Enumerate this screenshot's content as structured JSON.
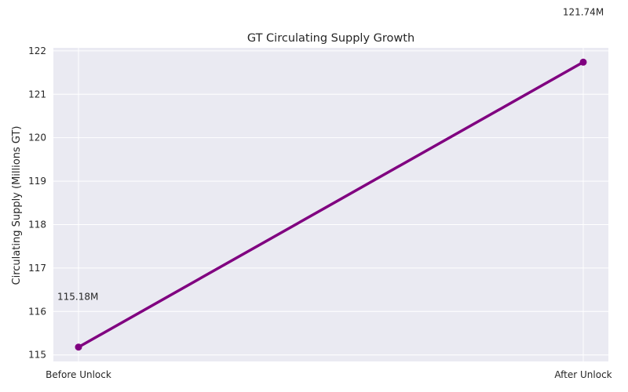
{
  "chart_data": {
    "type": "line",
    "title": "GT Circulating Supply Growth",
    "xlabel": "",
    "ylabel": "Circulating Supply (Millions GT)",
    "categories": [
      "Before Unlock",
      "After Unlock"
    ],
    "series": [
      {
        "name": "Circulating Supply",
        "values": [
          115.18,
          121.74
        ],
        "color": "#800080"
      }
    ],
    "data_labels": [
      "115.18M",
      "121.74M"
    ],
    "ylim": [
      114.85,
      122.07
    ],
    "yticks": [
      115,
      116,
      117,
      118,
      119,
      120,
      121,
      122
    ],
    "grid": true,
    "colors": {
      "plot_background": "#EAEAF2",
      "grid": "#FFFFFF",
      "line": "#800080",
      "text": "#262626"
    }
  }
}
